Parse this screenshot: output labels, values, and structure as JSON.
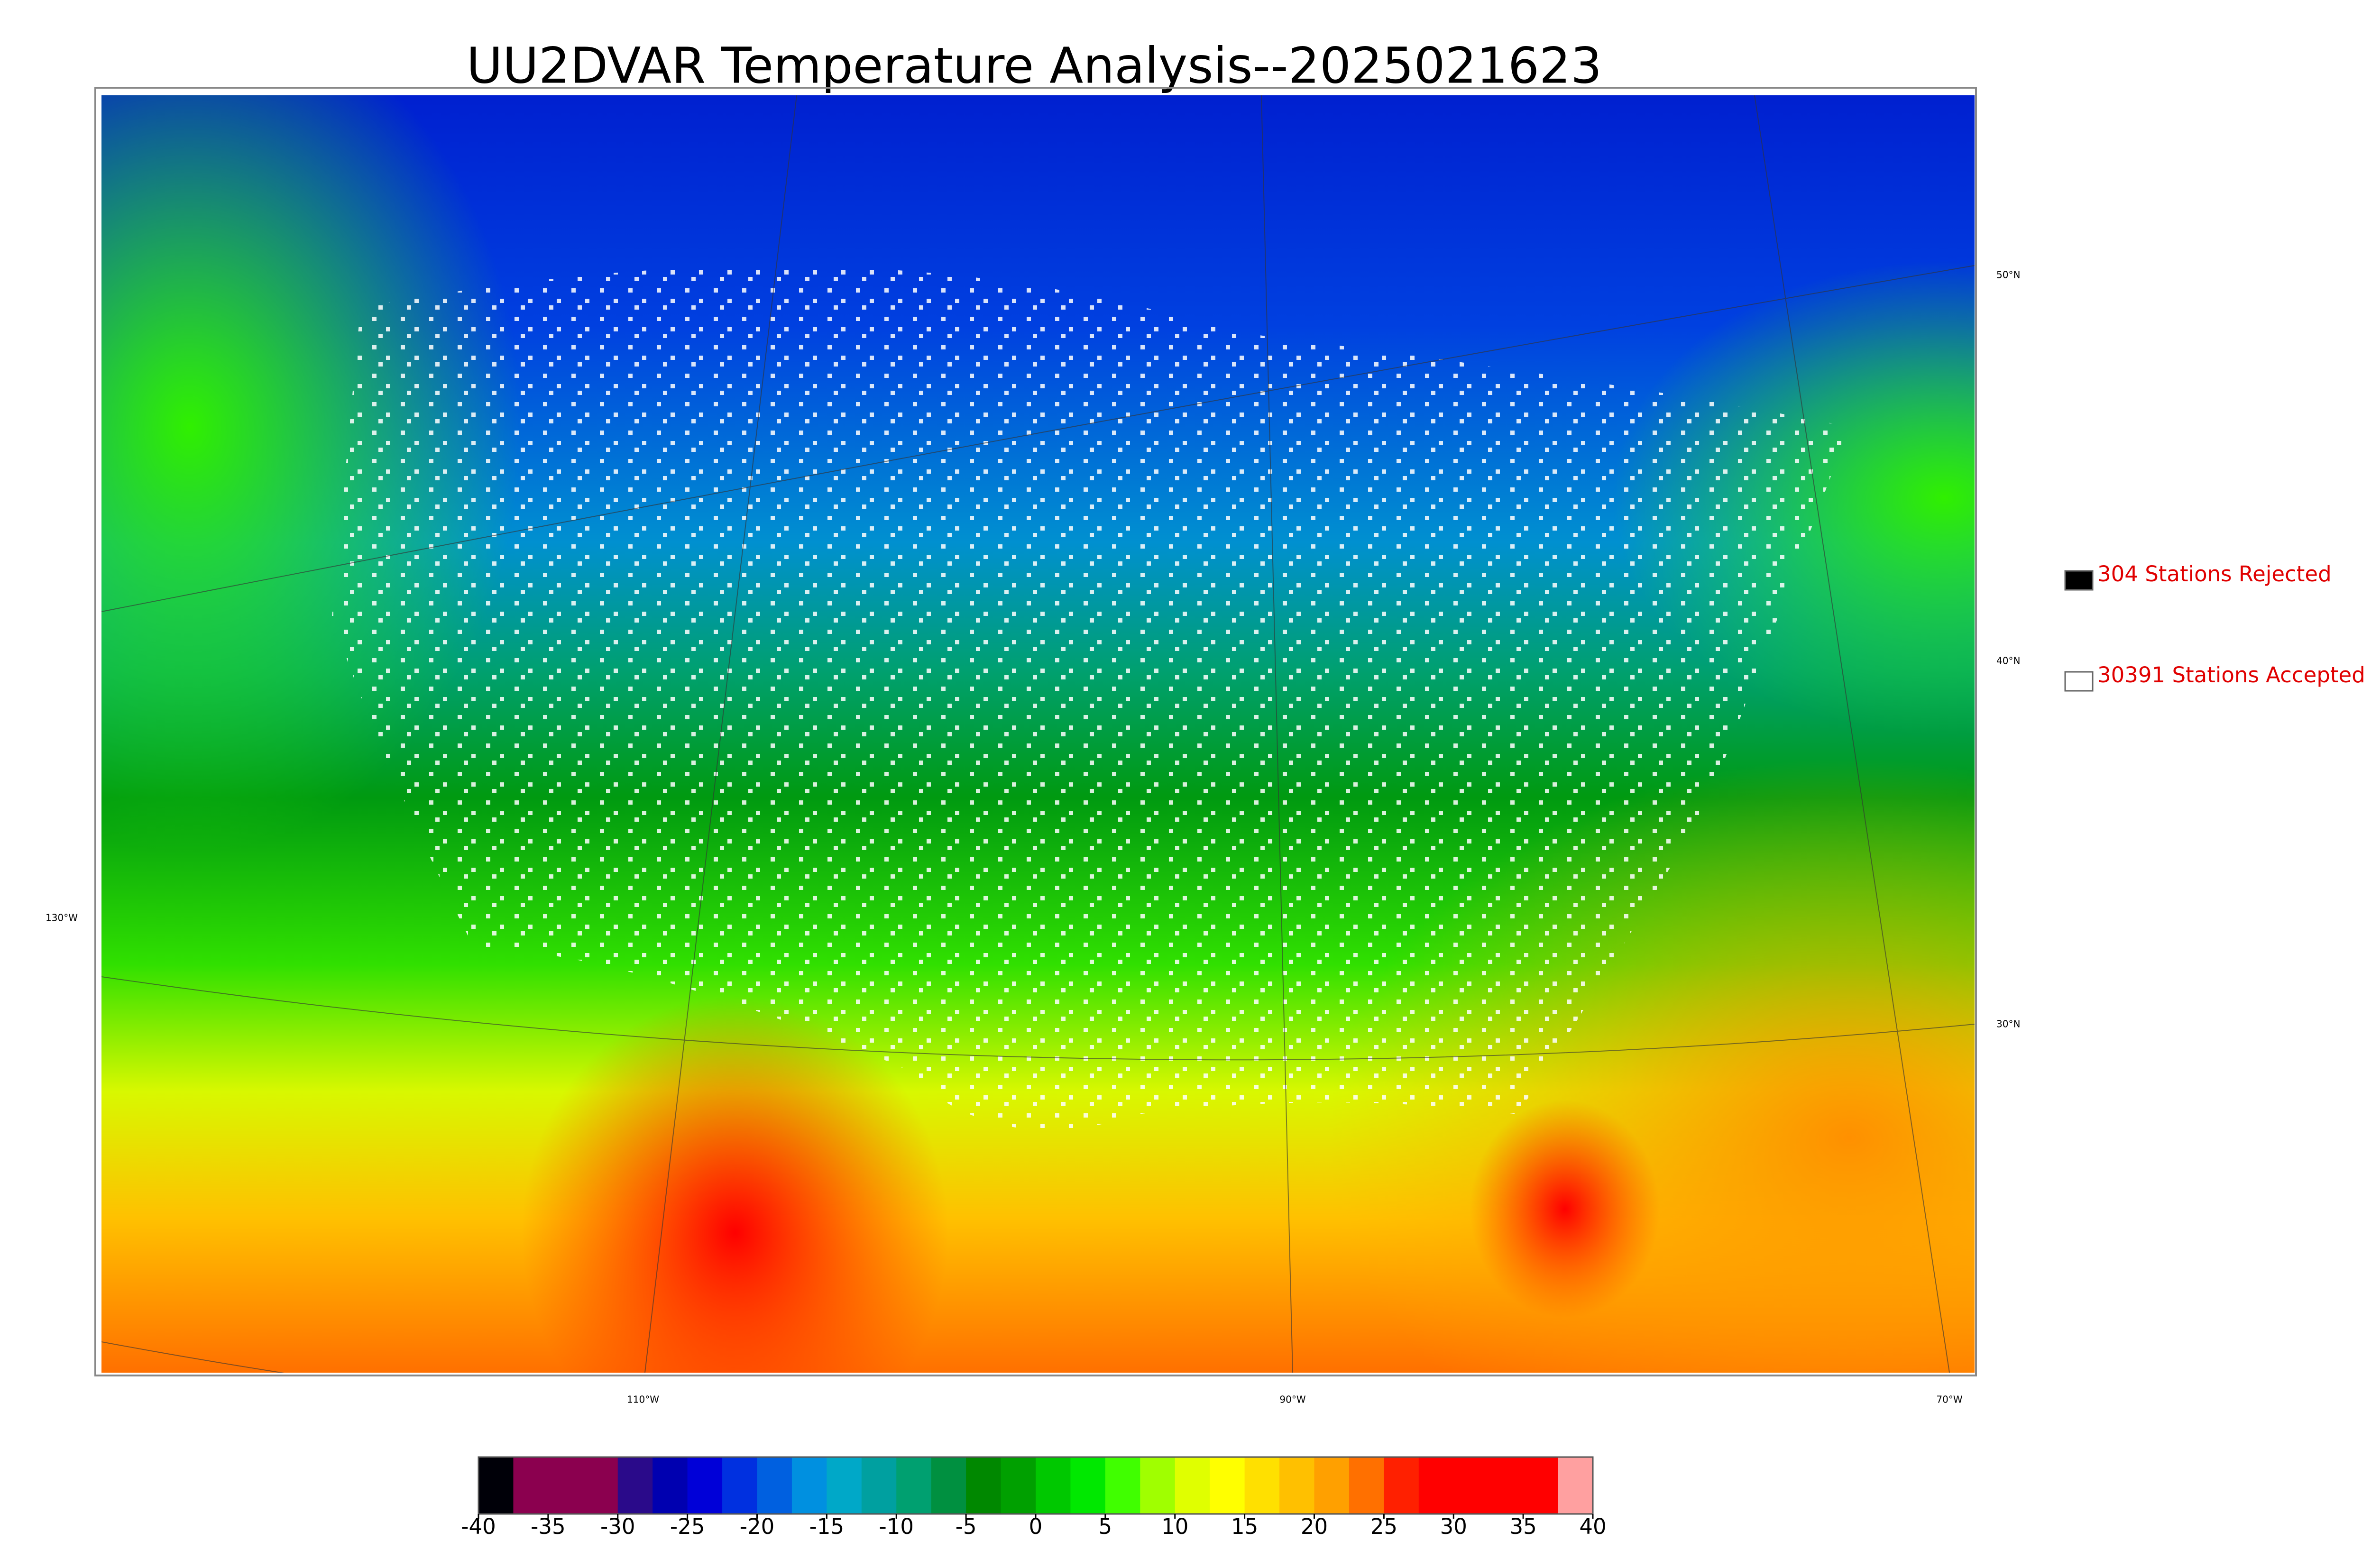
{
  "title": "UU2DVAR Temperature Analysis--2025021623",
  "legend": [
    {
      "label": "304 Stations Rejected",
      "color": "#000000"
    },
    {
      "label": "30391 Stations Accepted",
      "color": "#ffffff"
    }
  ],
  "graticule": {
    "longitudes": [
      "130°W",
      "110°W",
      "90°W",
      "70°W"
    ],
    "latitudes": [
      "50°N",
      "40°N",
      "30°N"
    ]
  },
  "colorbar": {
    "ticks": [
      -40,
      -35,
      -30,
      -25,
      -20,
      -15,
      -10,
      -5,
      0,
      5,
      10,
      15,
      20,
      25,
      30,
      35,
      40
    ],
    "colors": [
      "#000008",
      "#8b004f",
      "#8b004f",
      "#8b004f",
      "#2a0a8a",
      "#0000b0",
      "#0000d8",
      "#0030e0",
      "#0060e0",
      "#0090e0",
      "#00a8c8",
      "#00a0a0",
      "#00a070",
      "#009040",
      "#008800",
      "#00a000",
      "#00c800",
      "#00e800",
      "#40ff00",
      "#a0ff00",
      "#e0ff00",
      "#ffff00",
      "#ffe000",
      "#ffc000",
      "#ffa000",
      "#ff7000",
      "#ff2000",
      "#ff0000",
      "#ff0000",
      "#ff0000",
      "#ff0000",
      "#ffa0a0"
    ]
  }
}
